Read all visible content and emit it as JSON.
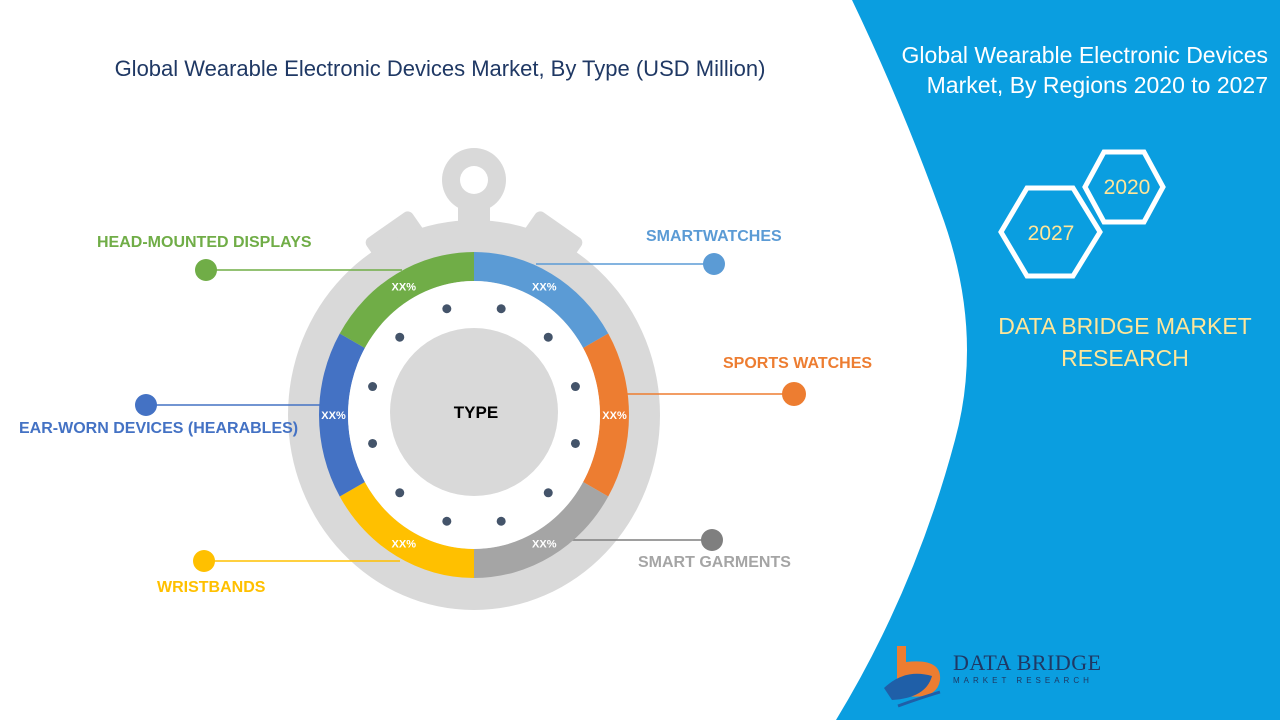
{
  "title": "Global Wearable Electronic Devices Market, By Type (USD Million)",
  "sidebar": {
    "title_line1": "Global Wearable Electronic Devices",
    "title_line2": "Market, By Regions 2020 to 2027",
    "year_a": "2020",
    "year_b": "2027",
    "brand_line1": "DATA BRIDGE MARKET",
    "brand_line2": "RESEARCH"
  },
  "center_label": "TYPE",
  "segments": [
    {
      "name": "SMARTWATCHES",
      "value": "XX%",
      "color": "#5b9bd5"
    },
    {
      "name": "SPORTS WATCHES",
      "value": "XX%",
      "color": "#ed7d31"
    },
    {
      "name": "SMART GARMENTS",
      "value": "XX%",
      "color": "#a5a5a5"
    },
    {
      "name": "WRISTBANDS",
      "value": "XX%",
      "color": "#ffc000"
    },
    {
      "name": "EAR-WORN DEVICES (HEARABLES)",
      "value": "XX%",
      "color": "#4472c4"
    },
    {
      "name": "HEAD-MOUNTED DISPLAYS",
      "value": "XX%",
      "color": "#70ad47"
    }
  ],
  "logo": {
    "title": "DATA BRIDGE",
    "subtitle": "MARKET RESEARCH"
  },
  "colors": {
    "panel": "#0a9ee0",
    "watch_body": "#d9d9d9",
    "title": "#1f3864",
    "brand": "#ffe699"
  }
}
